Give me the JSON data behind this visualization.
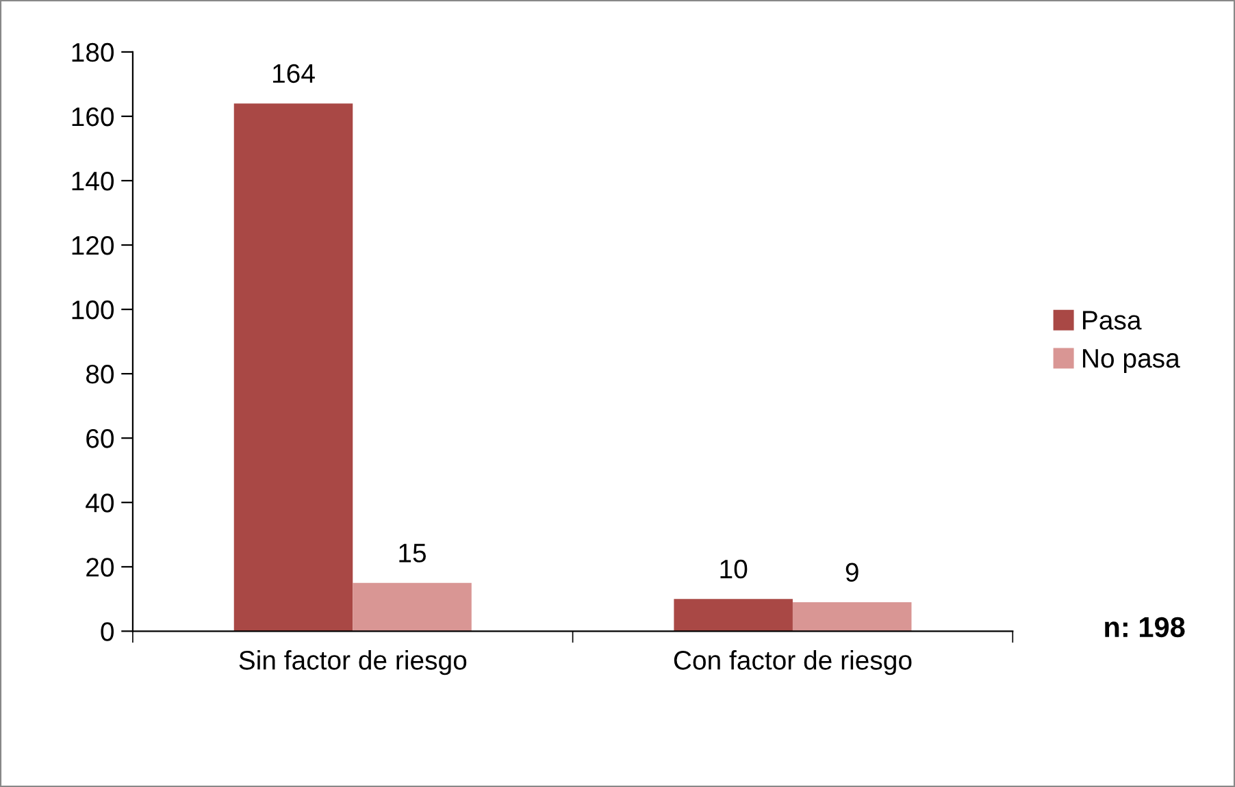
{
  "chart_data": {
    "type": "bar",
    "categories": [
      "Sin factor de riesgo",
      "Con factor de riesgo"
    ],
    "series": [
      {
        "name": "Pasa",
        "color": "#a94845",
        "values": [
          164,
          10
        ]
      },
      {
        "name": "No pasa",
        "color": "#d99694",
        "values": [
          15,
          9
        ]
      }
    ],
    "ylim": [
      0,
      180
    ],
    "yticks": [
      0,
      20,
      40,
      60,
      80,
      100,
      120,
      140,
      160,
      180
    ],
    "grid": false,
    "legend": "right",
    "data_labels": true,
    "annotations": [
      "n: 198"
    ]
  }
}
